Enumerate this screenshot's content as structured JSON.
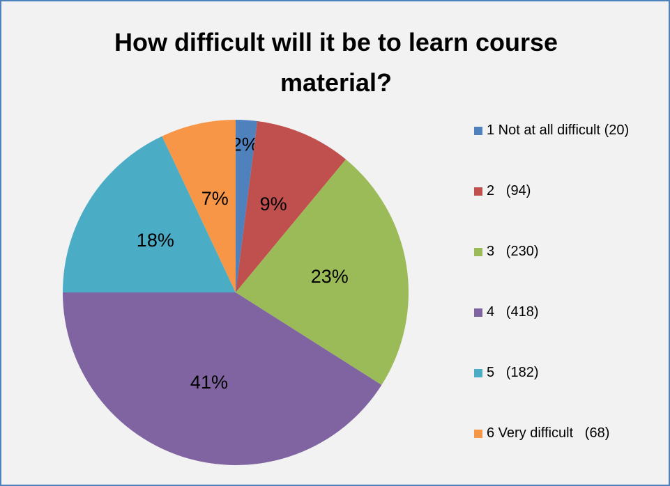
{
  "chart_data": {
    "type": "pie",
    "title": "How difficult will it be to learn course material?",
    "categories": [
      "1 Not at all difficult (20)",
      "2   (94)",
      "3   (230)",
      "4   (418)",
      "5   (182)",
      "6 Very difficult   (68)"
    ],
    "values": [
      2,
      9,
      23,
      41,
      18,
      7
    ],
    "value_labels": [
      "2%",
      "9%",
      "23%",
      "41%",
      "18%",
      "7%"
    ],
    "colors": [
      "#4f81bd",
      "#c0504d",
      "#9bbb59",
      "#8064a2",
      "#4bacc6",
      "#f79646"
    ],
    "legend": "right"
  }
}
